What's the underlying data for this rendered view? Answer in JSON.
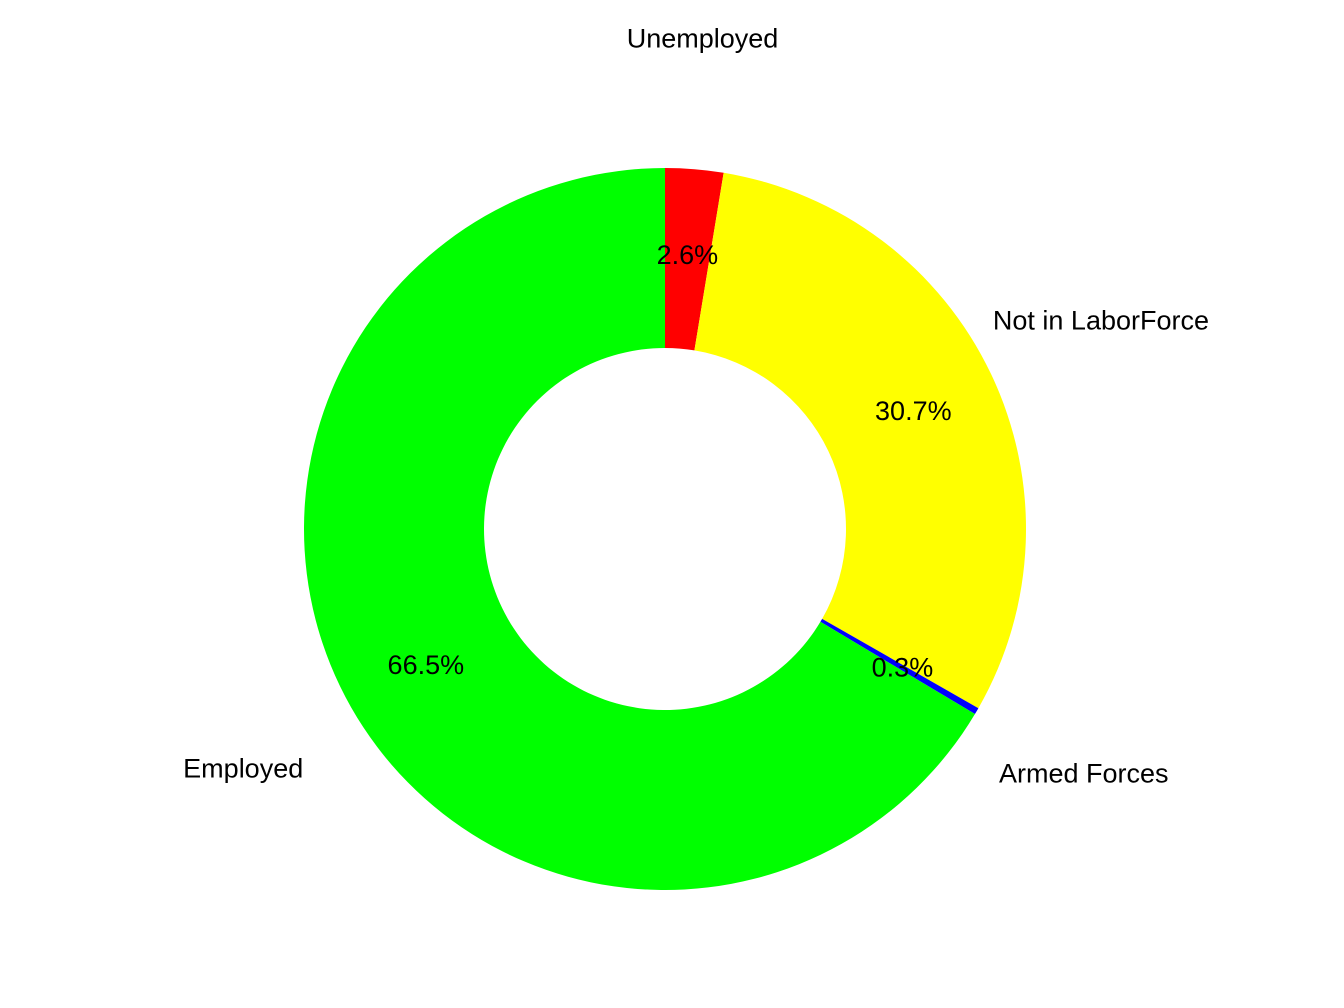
{
  "chart_data": {
    "type": "pie",
    "variant": "donut",
    "title": "",
    "direction": "clockwise",
    "start": "top",
    "slices": [
      {
        "name": "Unemployed",
        "value": 2.6,
        "percent_label": "2.6%",
        "color": "#FF0000"
      },
      {
        "name": "Not in LaborForce",
        "value": 30.7,
        "percent_label": "30.7%",
        "color": "#FFFF00"
      },
      {
        "name": "Armed Forces",
        "value": 0.3,
        "percent_label": "0.3%",
        "color": "#0000FF"
      },
      {
        "name": "Employed",
        "value": 66.5,
        "percent_label": "66.5%",
        "color": "#00FF00"
      }
    ]
  }
}
